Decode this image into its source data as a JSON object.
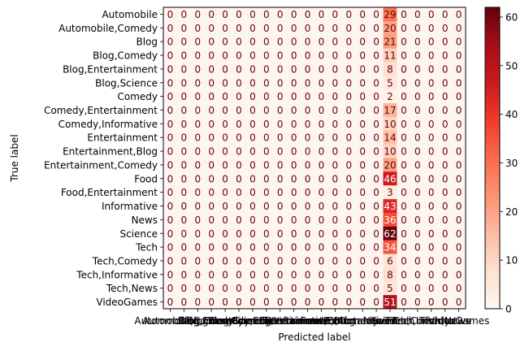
{
  "chart_data": {
    "type": "heatmap",
    "title": "",
    "xlabel": "Predicted label",
    "ylabel": "True label",
    "labels": [
      "Automobile",
      "Automobile,Comedy",
      "Blog",
      "Blog,Comedy",
      "Blog,Entertainment",
      "Blog,Science",
      "Comedy",
      "Comedy,Entertainment",
      "Comedy,Informative",
      "Entertainment",
      "Entertainment,Blog",
      "Entertainment,Comedy",
      "Food",
      "Food,Entertainment",
      "Informative",
      "News",
      "Science",
      "Tech",
      "Tech,Comedy",
      "Tech,Informative",
      "Tech,News",
      "VideoGames"
    ],
    "predicted_column_index": 16,
    "predicted_column_counts": [
      29,
      20,
      21,
      11,
      8,
      5,
      2,
      17,
      10,
      14,
      10,
      20,
      46,
      3,
      43,
      36,
      62,
      34,
      6,
      8,
      5,
      51
    ],
    "other_cell_value": 0,
    "colorbar": {
      "min": 0,
      "max": 62,
      "ticks": [
        0,
        10,
        20,
        30,
        40,
        50,
        60
      ]
    },
    "colormap": [
      "#fff5f0",
      "#fee0d2",
      "#fcbba1",
      "#fc9272",
      "#fb6a4a",
      "#ef3b2c",
      "#cb181d",
      "#a50f15",
      "#67000d"
    ],
    "text_color_light": "#ffffff",
    "text_color_dark": "#67000d",
    "grid": false
  }
}
